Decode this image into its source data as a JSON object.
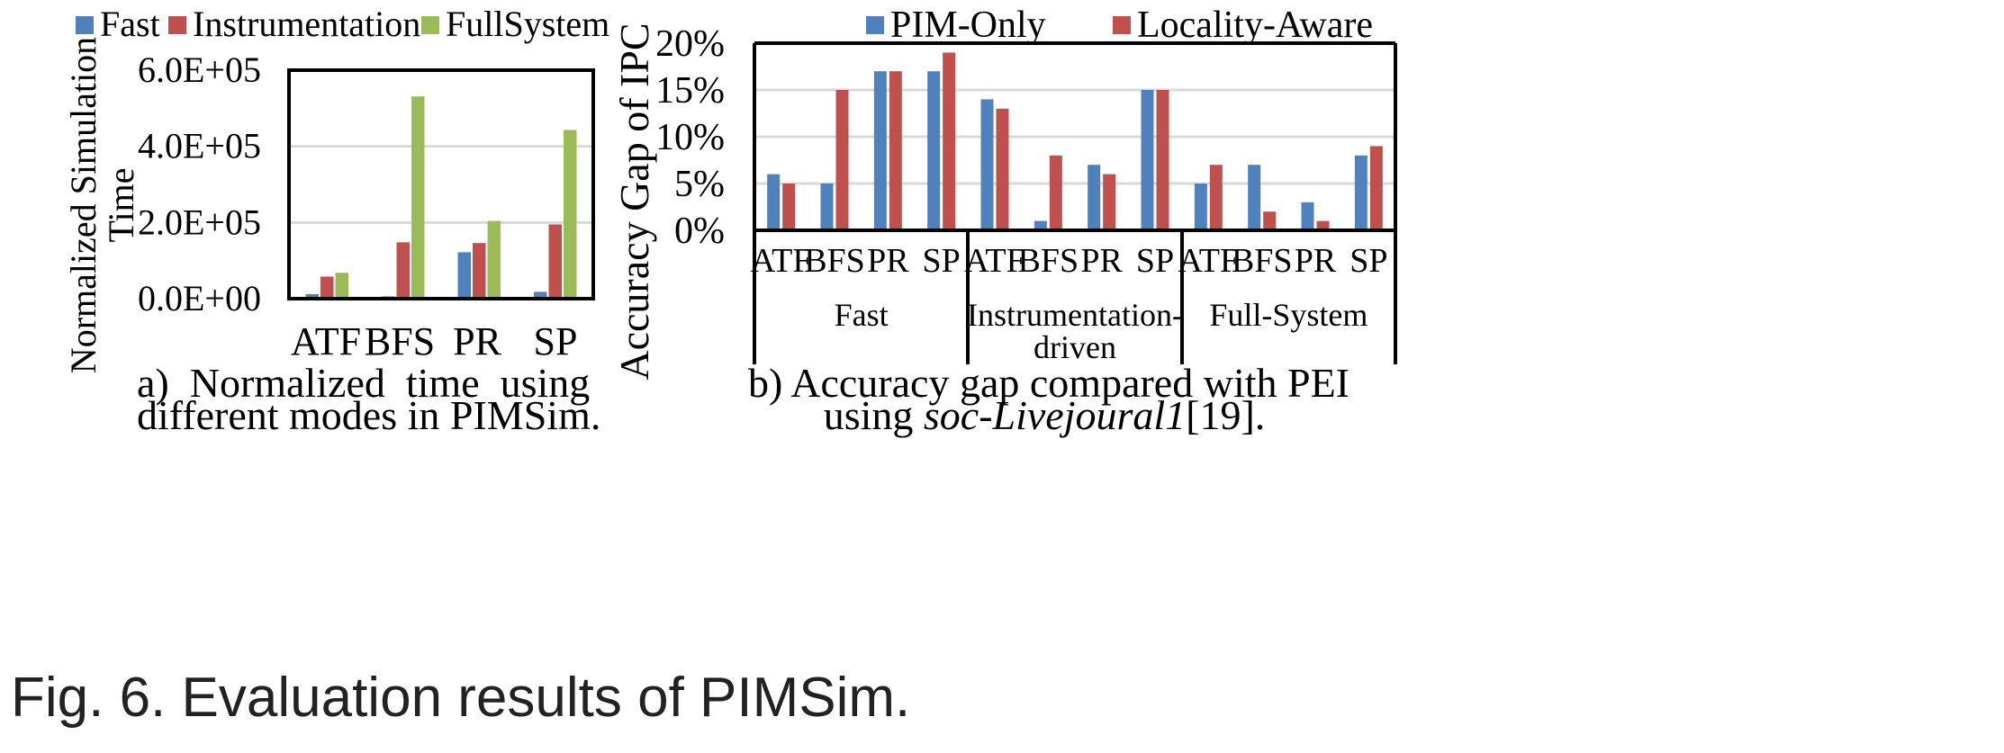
{
  "chart_data": [
    {
      "type": "bar",
      "title": "",
      "ylabel": "Normalized Simulation Time",
      "ylabel_lines": [
        "Normalized Simulation",
        "Time"
      ],
      "categories": [
        "ATF",
        "BFS",
        "PR",
        "SP"
      ],
      "ylim": [
        0,
        600000
      ],
      "yticks": [
        0,
        200000,
        400000,
        600000
      ],
      "ytick_labels": [
        "0.0E+00",
        "2.0E+05",
        "4.0E+05",
        "6.0E+05"
      ],
      "grid": true,
      "legend_position": "top",
      "series": [
        {
          "name": "Fast",
          "color": "#4f81bd",
          "values": [
            12000,
            6000,
            122000,
            18000
          ]
        },
        {
          "name": "Instrumentation",
          "color": "#c0504d",
          "values": [
            58000,
            148000,
            146000,
            195000
          ]
        },
        {
          "name": "FullSystem",
          "color": "#9bbb59",
          "values": [
            68000,
            531000,
            204000,
            443000
          ]
        }
      ],
      "caption_lines": [
        "a)  Normalized  time  using",
        "different modes in PIMSim."
      ]
    },
    {
      "type": "bar",
      "title": "",
      "ylabel": "Accuracy Gap of IPC",
      "ylim": [
        0,
        20
      ],
      "yticks": [
        0,
        5,
        10,
        15,
        20
      ],
      "ytick_labels": [
        "0%",
        "5%",
        "10%",
        "15%",
        "20%"
      ],
      "grid": true,
      "legend_position": "top",
      "groups": [
        {
          "label_lines": [
            "Fast"
          ],
          "categories": [
            "ATF",
            "BFS",
            "PR",
            "SP"
          ]
        },
        {
          "label_lines": [
            "Instrumentation-",
            "driven"
          ],
          "categories": [
            "ATF",
            "BFS",
            "PR",
            "SP"
          ]
        },
        {
          "label_lines": [
            "Full-System"
          ],
          "categories": [
            "ATF",
            "BFS",
            "PR",
            "SP"
          ]
        }
      ],
      "series": [
        {
          "name": "PIM-Only",
          "color": "#4f81bd",
          "values": [
            6,
            5,
            17,
            17,
            14,
            1,
            7,
            15,
            5,
            7,
            3,
            8
          ]
        },
        {
          "name": "Locality-Aware",
          "color": "#c0504d",
          "values": [
            5,
            15,
            17,
            19,
            13,
            8,
            6,
            15,
            7,
            2,
            1,
            9
          ]
        }
      ],
      "caption_line1": "b) Accuracy gap compared with PEI",
      "caption_line2_prefix": "using ",
      "caption_line2_italic": "soc-Livejoural1",
      "caption_line2_suffix": "[19]."
    }
  ],
  "figure_caption": "Fig. 6. Evaluation results of PIMSim."
}
